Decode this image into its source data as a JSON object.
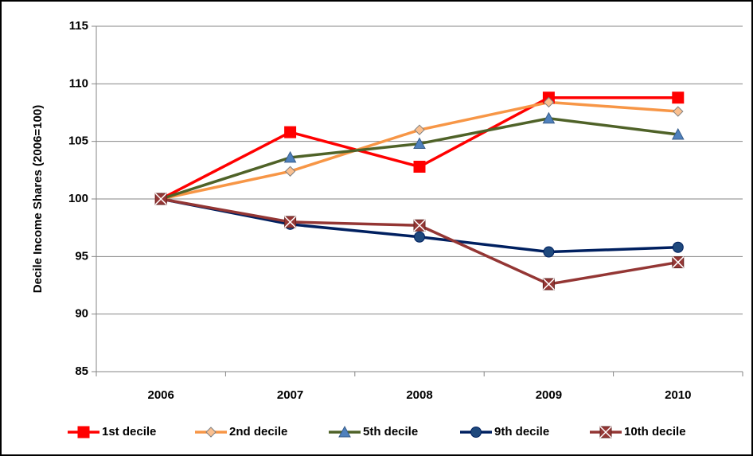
{
  "chart_data": {
    "type": "line",
    "y_label": "Decile Income Shares (2006=100)",
    "categories": [
      "2006",
      "2007",
      "2008",
      "2009",
      "2010"
    ],
    "ylim": [
      85,
      115
    ],
    "yticks": [
      85,
      90,
      95,
      100,
      105,
      110,
      115
    ],
    "grid": true,
    "legend": "bottom",
    "series": [
      {
        "name": "1st decile",
        "color": "#ff0000",
        "marker": "square",
        "marker_color": "#ff0000",
        "values": [
          100,
          105.8,
          102.8,
          108.8,
          108.8
        ]
      },
      {
        "name": "2nd decile",
        "color": "#f79646",
        "marker": "diamond",
        "marker_color": "#fac090",
        "values": [
          100,
          102.4,
          106.0,
          108.4,
          107.6
        ]
      },
      {
        "name": "5th decile",
        "color": "#4f6228",
        "marker": "triangle",
        "marker_color": "#4f81bd",
        "values": [
          100,
          103.6,
          104.8,
          107.0,
          105.6
        ]
      },
      {
        "name": "9th decile",
        "color": "#002060",
        "marker": "circle",
        "marker_color": "#1f497d",
        "values": [
          100,
          97.8,
          96.7,
          95.4,
          95.8
        ]
      },
      {
        "name": "10th decile",
        "color": "#943634",
        "marker": "xsquare",
        "marker_color": "#953735",
        "values": [
          100,
          98.0,
          97.7,
          92.6,
          94.5
        ]
      }
    ]
  }
}
